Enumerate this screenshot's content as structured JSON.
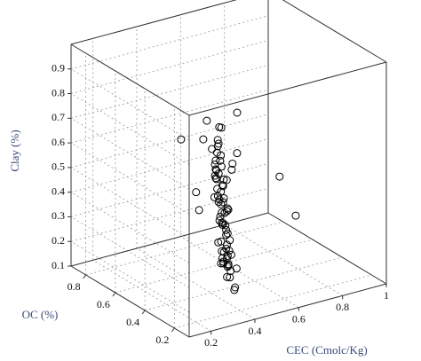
{
  "chart_data": {
    "type": "scatter3d",
    "xlabel": "CEC (Cmolc/Kg)",
    "ylabel": "OC (%)",
    "zlabel": "Clay (%)",
    "xlim": [
      0.1,
      1
    ],
    "xticks": [
      0.2,
      0.4,
      0.6,
      0.8,
      1
    ],
    "ylim": [
      0.1,
      0.9
    ],
    "yticks": [
      0.2,
      0.4,
      0.6,
      0.8
    ],
    "zlim": [
      0.1,
      1
    ],
    "zticks": [
      0.1,
      0.2,
      0.3,
      0.4,
      0.5,
      0.6,
      0.7,
      0.8,
      0.9
    ],
    "color": "#000000",
    "grid": true,
    "x": [
      0.35,
      0.38,
      0.42,
      0.3,
      0.45,
      0.4,
      0.33,
      0.37,
      0.48,
      0.41,
      0.36,
      0.39,
      0.44,
      0.31,
      0.43,
      0.38,
      0.46,
      0.34,
      0.4,
      0.42,
      0.37,
      0.5,
      0.35,
      0.39,
      0.41,
      0.45,
      0.32,
      0.38,
      0.43,
      0.36,
      0.47,
      0.4,
      0.34,
      0.39,
      0.42,
      0.37,
      0.44,
      0.41,
      0.36,
      0.38,
      0.52,
      0.55,
      0.48,
      0.46,
      0.33,
      0.4,
      0.42,
      0.39,
      0.35,
      0.43,
      0.37,
      0.41,
      0.38,
      0.45,
      0.36,
      0.4,
      0.44,
      0.39,
      0.34,
      0.42,
      0.47,
      0.38,
      0.41,
      0.36,
      0.43,
      0.4,
      0.37,
      0.39,
      0.58,
      0.62,
      0.3,
      0.28,
      0.45,
      0.5,
      0.4,
      0.35,
      0.42,
      0.38,
      0.53,
      0.44
    ],
    "y": [
      0.25,
      0.3,
      0.35,
      0.2,
      0.4,
      0.28,
      0.22,
      0.33,
      0.45,
      0.38,
      0.26,
      0.31,
      0.42,
      0.18,
      0.36,
      0.29,
      0.48,
      0.24,
      0.34,
      0.39,
      0.27,
      0.5,
      0.21,
      0.32,
      0.37,
      0.44,
      0.19,
      0.3,
      0.41,
      0.23,
      0.46,
      0.35,
      0.2,
      0.28,
      0.4,
      0.25,
      0.43,
      0.33,
      0.22,
      0.31,
      0.52,
      0.55,
      0.47,
      0.38,
      0.17,
      0.29,
      0.36,
      0.27,
      0.16,
      0.39,
      0.24,
      0.32,
      0.26,
      0.41,
      0.21,
      0.3,
      0.37,
      0.28,
      0.19,
      0.34,
      0.45,
      0.23,
      0.36,
      0.18,
      0.33,
      0.27,
      0.22,
      0.3,
      0.2,
      0.15,
      0.35,
      0.3,
      0.5,
      0.4,
      0.6,
      0.15,
      0.25,
      0.42,
      0.45,
      0.28
    ],
    "z": [
      0.45,
      0.5,
      0.55,
      0.4,
      0.6,
      0.48,
      0.35,
      0.52,
      0.62,
      0.57,
      0.3,
      0.46,
      0.58,
      0.32,
      0.54,
      0.42,
      0.64,
      0.38,
      0.5,
      0.56,
      0.28,
      0.66,
      0.33,
      0.44,
      0.53,
      0.61,
      0.36,
      0.26,
      0.59,
      0.31,
      0.63,
      0.51,
      0.25,
      0.4,
      0.57,
      0.34,
      0.6,
      0.49,
      0.29,
      0.43,
      0.7,
      0.68,
      0.65,
      0.55,
      0.37,
      0.47,
      0.52,
      0.39,
      0.22,
      0.58,
      0.27,
      0.45,
      0.35,
      0.62,
      0.24,
      0.41,
      0.56,
      0.38,
      0.3,
      0.5,
      0.67,
      0.32,
      0.48,
      0.2,
      0.46,
      0.36,
      0.26,
      0.42,
      0.6,
      0.45,
      0.55,
      0.5,
      0.75,
      0.6,
      0.65,
      0.3,
      0.88,
      0.72,
      0.55,
      0.7
    ]
  }
}
